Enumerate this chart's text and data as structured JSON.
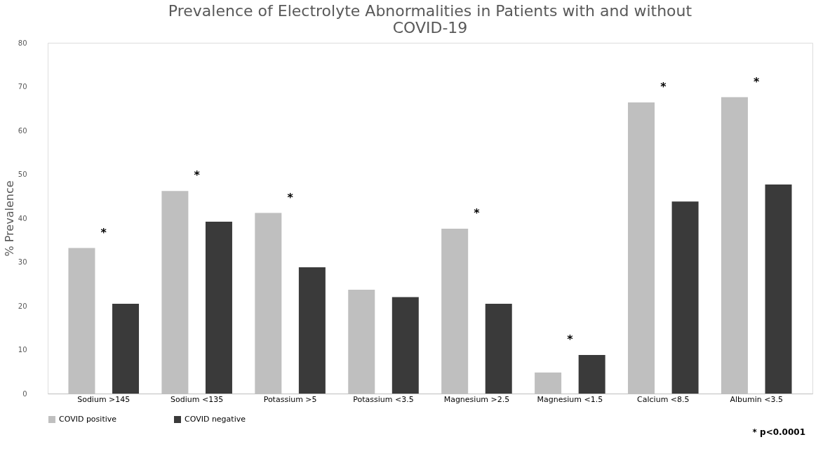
{
  "chart_data": {
    "type": "bar",
    "title": "Prevalence of Electrolyte Abnormalities in  Patients with and without COVID-19",
    "ylabel": "% Prevalence",
    "categories": [
      "Sodium >145",
      "Sodium <135",
      "Potassium >5",
      "Potassium <3.5",
      "Magnesium >2.5",
      "Magnesium <1.5",
      "Calcium <8.5",
      "Albumin <3.5"
    ],
    "series": [
      {
        "name": "COVID positive",
        "color": "#bfbfbf",
        "values": [
          33.2,
          46.2,
          41.2,
          23.7,
          37.6,
          4.8,
          66.4,
          67.6
        ]
      },
      {
        "name": "COVID negative",
        "color": "#3a3a3a",
        "values": [
          20.5,
          39.2,
          28.8,
          22.0,
          20.5,
          8.8,
          43.8,
          47.7
        ]
      }
    ],
    "ylim": [
      0,
      80
    ],
    "yticks": [
      0,
      10,
      20,
      30,
      40,
      50,
      60,
      70,
      80
    ],
    "grid": false,
    "legend": "bottom",
    "annotations": [
      "*",
      "*",
      "*",
      "*",
      "*",
      "*",
      "*",
      "* p<0.0001"
    ]
  }
}
